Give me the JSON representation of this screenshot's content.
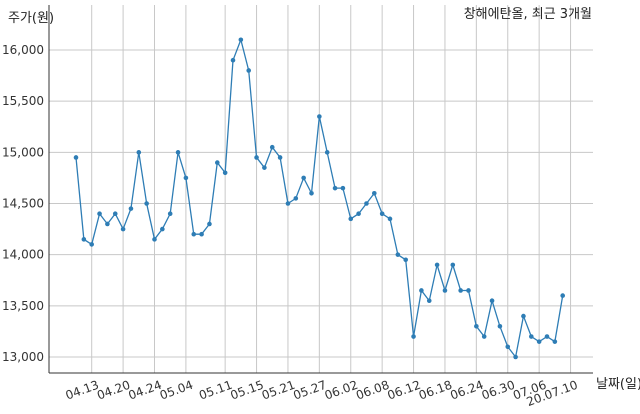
{
  "chart_data": {
    "type": "line",
    "title": "창해에탄올, 최근 3개월",
    "ylabel": "주가(원)",
    "xlabel": "날짜(일)",
    "ylim": [
      12830,
      16250
    ],
    "yticks": [
      13000,
      13500,
      14000,
      14500,
      15000,
      15500,
      16000
    ],
    "ytick_labels": [
      "13,000",
      "13,500",
      "14,000",
      "14,500",
      "15,000",
      "15,500",
      "16,000"
    ],
    "xticks": [
      {
        "label": "04.13",
        "index": 2
      },
      {
        "label": "04.20",
        "index": 6
      },
      {
        "label": "04.24",
        "index": 10
      },
      {
        "label": "05.04",
        "index": 14
      },
      {
        "label": "05.11",
        "index": 19
      },
      {
        "label": "05.15",
        "index": 23
      },
      {
        "label": "05.21",
        "index": 27
      },
      {
        "label": "05.27",
        "index": 31
      },
      {
        "label": "06.02",
        "index": 35
      },
      {
        "label": "06.08",
        "index": 39
      },
      {
        "label": "06.12",
        "index": 43
      },
      {
        "label": "06.18",
        "index": 47
      },
      {
        "label": "06.24",
        "index": 51
      },
      {
        "label": "06.30",
        "index": 55
      },
      {
        "label": "07.06",
        "index": 59
      },
      {
        "label": "20.07.10",
        "index": 63
      }
    ],
    "series": [
      {
        "color": "#2e7db5",
        "values": [
          14950,
          14150,
          14100,
          14400,
          14300,
          14400,
          14250,
          14450,
          15000,
          14500,
          14150,
          14250,
          14400,
          15000,
          14750,
          14200,
          14200,
          14300,
          14900,
          14800,
          15900,
          16100,
          15800,
          14950,
          14850,
          15050,
          14950,
          14500,
          14550,
          14750,
          14600,
          15350,
          15000,
          14650,
          14650,
          14350,
          14400,
          14500,
          14600,
          14400,
          14350,
          14000,
          13950,
          13200,
          13650,
          13550,
          13900,
          13650,
          13900,
          13650,
          13650,
          13300,
          13200,
          13550,
          13300,
          13100,
          13000,
          13400,
          13200,
          13150,
          13200,
          13150,
          13600
        ]
      }
    ],
    "grid": true,
    "legend": "none"
  }
}
